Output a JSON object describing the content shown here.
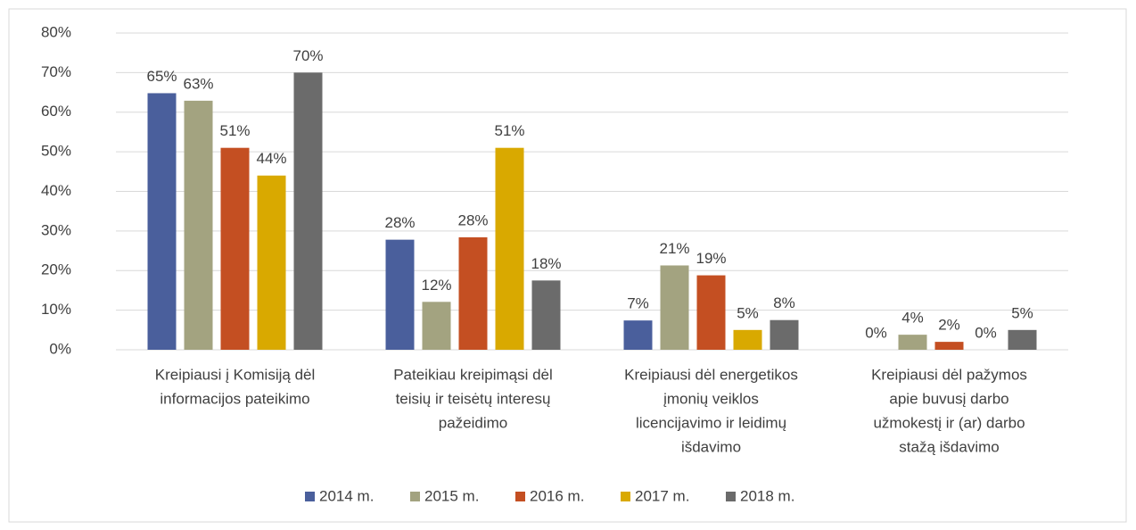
{
  "chart_data": {
    "type": "bar",
    "categories": [
      [
        "Kreipiausi į Komisiją dėl",
        "informacijos pateikimo"
      ],
      [
        "Pateikiau kreipimąsi dėl",
        "teisių ir teisėtų interesų",
        "pažeidimo"
      ],
      [
        "Kreipiausi dėl energetikos",
        "įmonių veiklos",
        "licencijavimo ir leidimų",
        "išdavimo"
      ],
      [
        "Kreipiausi dėl pažymos",
        "apie buvusį darbo",
        "užmokestį ir (ar) darbo",
        "stažą išdavimo"
      ]
    ],
    "series": [
      {
        "name": "2014 m.",
        "color": "#4a5f9c",
        "values": [
          64.8,
          27.8,
          7.4,
          0
        ],
        "value_labels": [
          "65%",
          "28%",
          "7%",
          "0%"
        ]
      },
      {
        "name": "2015 m.",
        "color": "#a3a380",
        "values": [
          62.9,
          12.1,
          21.3,
          3.8
        ],
        "value_labels": [
          "63%",
          "12%",
          "21%",
          "4%"
        ]
      },
      {
        "name": "2016 m.",
        "color": "#c44f22",
        "values": [
          51,
          28.4,
          18.8,
          2
        ],
        "value_labels": [
          "51%",
          "28%",
          "19%",
          "2%"
        ]
      },
      {
        "name": "2017 m.",
        "color": "#d9a900",
        "values": [
          44,
          51,
          5,
          0
        ],
        "value_labels": [
          "44%",
          "51%",
          "5%",
          "0%"
        ]
      },
      {
        "name": "2018 m.",
        "color": "#6b6b6b",
        "values": [
          70,
          17.5,
          7.5,
          5
        ],
        "value_labels": [
          "70%",
          "18%",
          "8%",
          "5%"
        ]
      }
    ],
    "ylim": [
      0,
      80
    ],
    "yticks": [
      {
        "value": 0,
        "label": "0%"
      },
      {
        "value": 10,
        "label": "10%"
      },
      {
        "value": 20,
        "label": "20%"
      },
      {
        "value": 30,
        "label": "30%"
      },
      {
        "value": 40,
        "label": "40%"
      },
      {
        "value": 50,
        "label": "50%"
      },
      {
        "value": 60,
        "label": "60%"
      },
      {
        "value": 70,
        "label": "70%"
      },
      {
        "value": 80,
        "label": "80%"
      }
    ],
    "grid": true,
    "legend": "bottom"
  }
}
